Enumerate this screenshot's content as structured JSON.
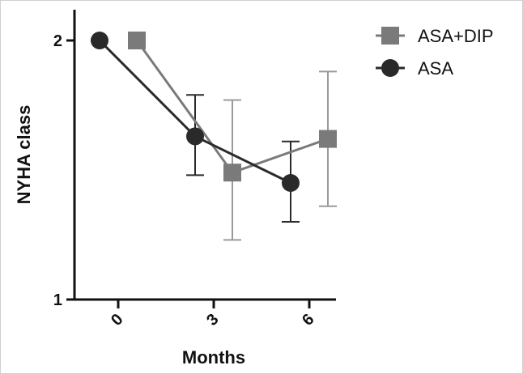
{
  "chart_data": {
    "type": "line",
    "xlabel": "Months",
    "ylabel": "NYHA class",
    "x_ticks": [
      "0",
      "3",
      "6"
    ],
    "y_ticks": [
      "1",
      "2"
    ],
    "ylim": [
      1,
      2
    ],
    "legend_position": "top-right",
    "series": [
      {
        "name": "ASA+DIP",
        "marker": "square",
        "color": "#7a7a7a",
        "errorbar_color": "#9a9a9a",
        "points": [
          {
            "x": 0,
            "y": 2.0,
            "err_low": null,
            "err_high": null
          },
          {
            "x": 3,
            "y": 1.49,
            "err_low": 1.23,
            "err_high": 1.77
          },
          {
            "x": 6,
            "y": 1.62,
            "err_low": 1.36,
            "err_high": 1.88
          }
        ]
      },
      {
        "name": "ASA",
        "marker": "circle",
        "color": "#2a2a2a",
        "errorbar_color": "#2a2a2a",
        "points": [
          {
            "x": 0,
            "y": 2.0,
            "err_low": null,
            "err_high": null
          },
          {
            "x": 3,
            "y": 1.63,
            "err_low": 1.48,
            "err_high": 1.79
          },
          {
            "x": 6,
            "y": 1.45,
            "err_low": 1.3,
            "err_high": 1.61
          }
        ]
      }
    ]
  }
}
